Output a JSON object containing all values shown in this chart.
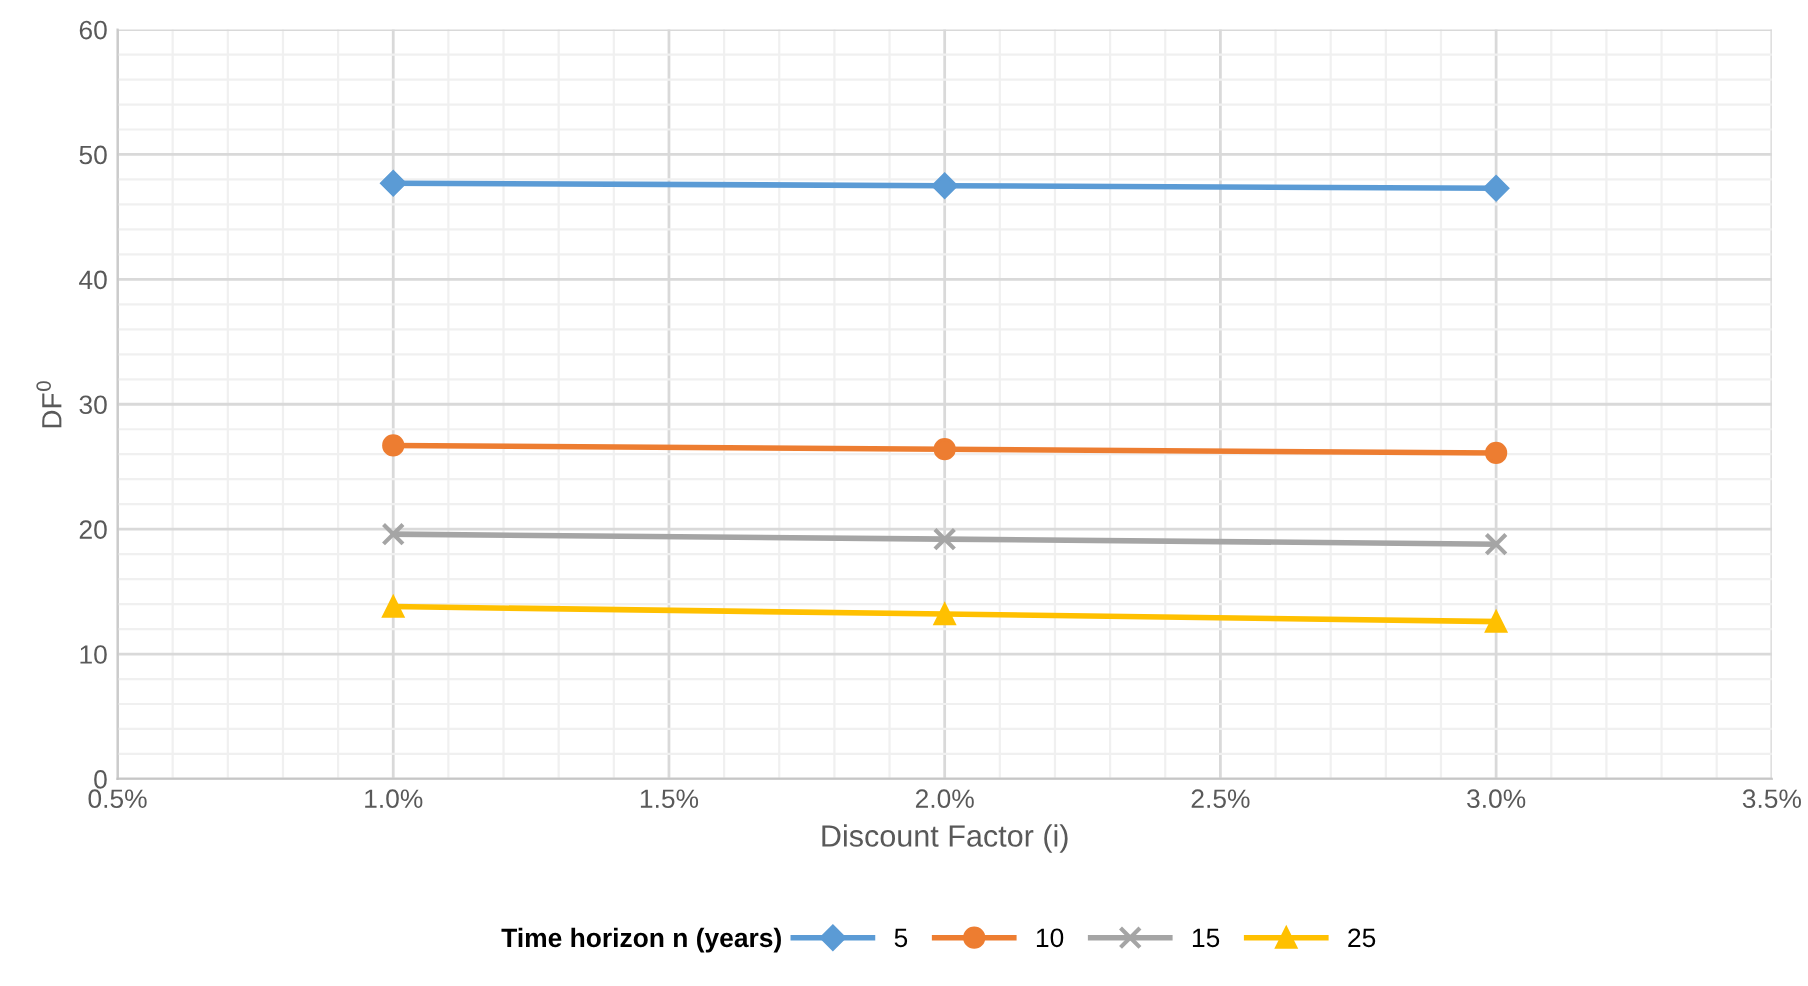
{
  "chart_data": {
    "type": "line",
    "xlabel": "Discount Factor (i)",
    "ylabel": "DF$^{0}$",
    "legend_title": "Time horizon n (years)",
    "x": [
      1.0,
      2.0,
      3.0
    ],
    "series": [
      {
        "name": "5",
        "color": "#5b9bd5",
        "marker": "diamond",
        "values": [
          47.7,
          47.5,
          47.3
        ]
      },
      {
        "name": "10",
        "color": "#ed7d31",
        "marker": "circle",
        "values": [
          26.7,
          26.4,
          26.1
        ]
      },
      {
        "name": "15",
        "color": "#a5a5a5",
        "marker": "cross",
        "values": [
          19.6,
          19.2,
          18.8
        ]
      },
      {
        "name": "25",
        "color": "#ffc000",
        "marker": "triangle",
        "values": [
          13.8,
          13.2,
          12.6
        ]
      }
    ],
    "xlim": [
      0.5,
      3.5
    ],
    "xticks": [
      {
        "value": 0.5,
        "label": "0.5%"
      },
      {
        "value": 1.0,
        "label": "1.0%"
      },
      {
        "value": 1.5,
        "label": "1.5%"
      },
      {
        "value": 2.0,
        "label": "2.0%"
      },
      {
        "value": 2.5,
        "label": "2.5%"
      },
      {
        "value": 3.0,
        "label": "3.0%"
      },
      {
        "value": 3.5,
        "label": "3.5%"
      }
    ],
    "ylim": [
      0,
      60
    ],
    "yticks": [
      0,
      10,
      20,
      30,
      40,
      50,
      60
    ],
    "grid": true,
    "legend": "bottom",
    "line_style": "solid"
  }
}
